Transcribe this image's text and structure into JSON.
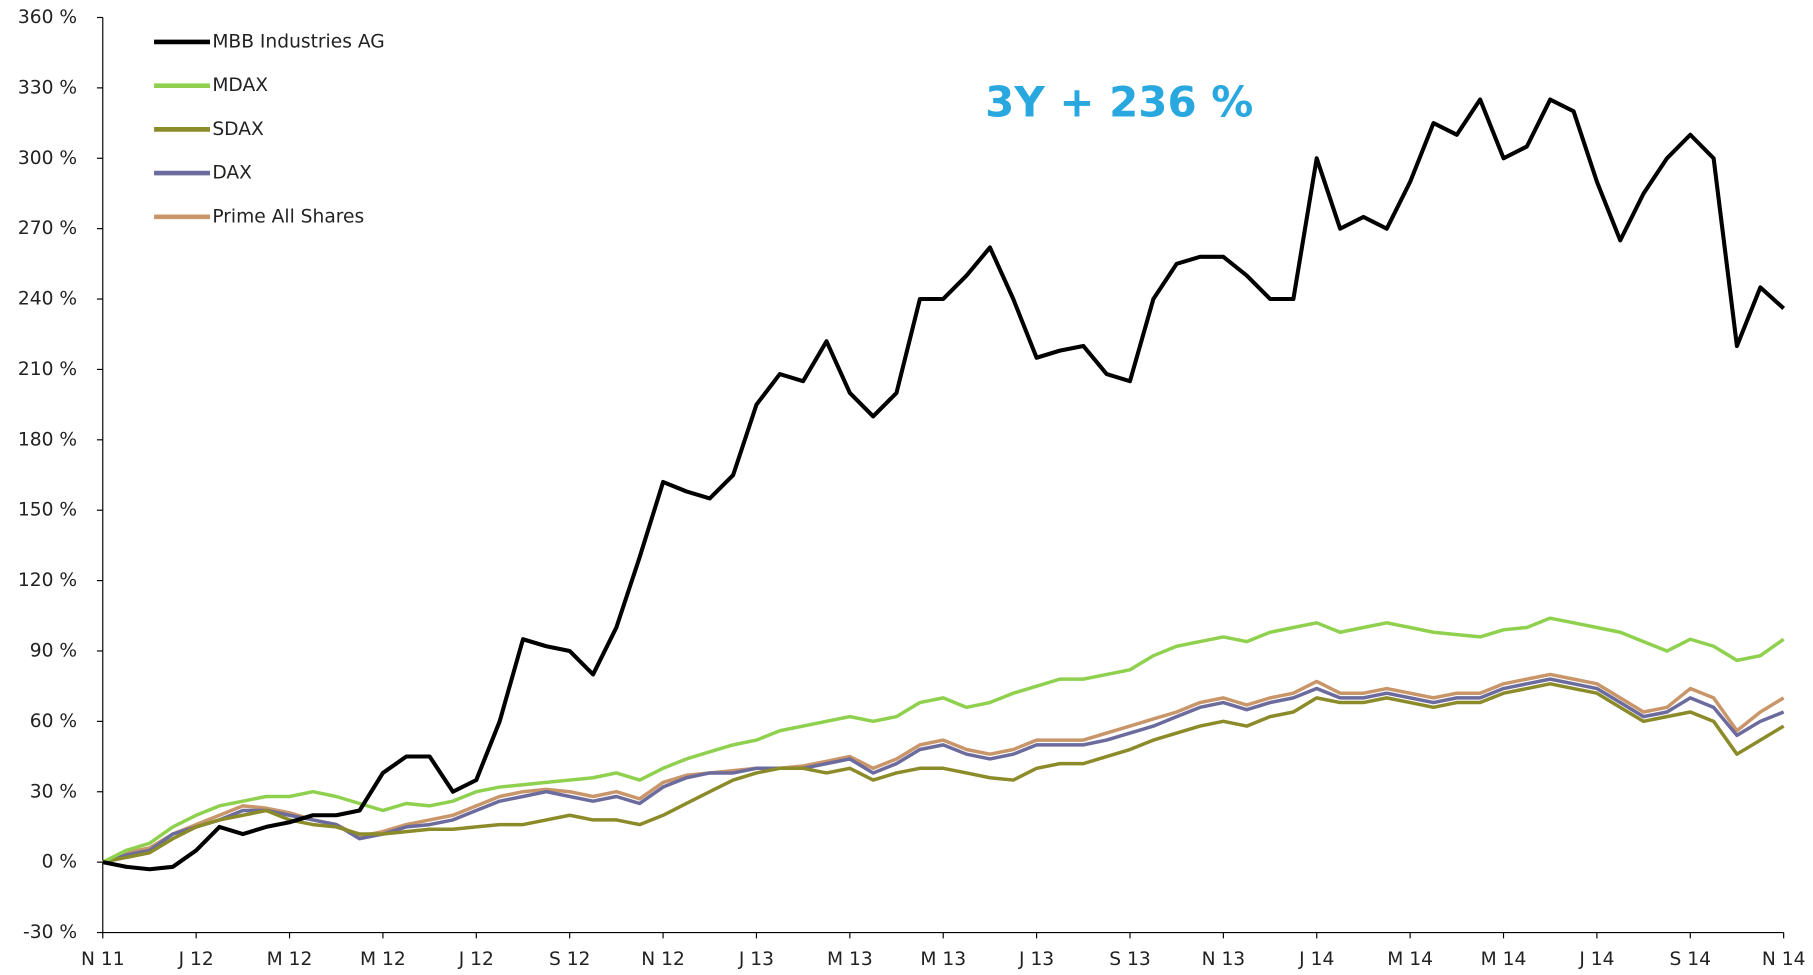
{
  "chart_data": {
    "type": "line",
    "annotation": "3Y + 236 %",
    "categories": [
      "N 11",
      null,
      null,
      null,
      "J 12",
      null,
      null,
      null,
      "M 12",
      null,
      null,
      null,
      "M 12",
      null,
      null,
      null,
      "J 12",
      null,
      null,
      null,
      "S 12",
      null,
      null,
      null,
      "N 12",
      null,
      null,
      null,
      "J 13",
      null,
      null,
      null,
      "M 13",
      null,
      null,
      null,
      "M 13",
      null,
      null,
      null,
      "J 13",
      null,
      null,
      null,
      "S 13",
      null,
      null,
      null,
      "N 13",
      null,
      null,
      null,
      "J 14",
      null,
      null,
      null,
      "M 14",
      null,
      null,
      null,
      "M 14",
      null,
      null,
      null,
      "J 14",
      null,
      null,
      null,
      "S 14",
      null,
      null,
      null,
      "N 14"
    ],
    "series": [
      {
        "name": "MBB Industries AG",
        "color": "#000000",
        "values": [
          0,
          -2,
          -3,
          -2,
          5,
          15,
          12,
          15,
          17,
          20,
          20,
          22,
          38,
          45,
          45,
          30,
          35,
          60,
          95,
          92,
          90,
          80,
          100,
          130,
          162,
          158,
          155,
          165,
          195,
          208,
          205,
          222,
          200,
          190,
          200,
          240,
          240,
          250,
          262,
          240,
          215,
          218,
          220,
          208,
          205,
          240,
          255,
          258,
          258,
          250,
          240,
          240,
          300,
          270,
          275,
          270,
          290,
          315,
          310,
          325,
          300,
          305,
          325,
          320,
          290,
          265,
          285,
          300,
          310,
          300,
          220,
          245,
          236
        ]
      },
      {
        "name": "MDAX",
        "color": "#8fd14f",
        "values": [
          0,
          5,
          8,
          15,
          20,
          24,
          26,
          28,
          28,
          30,
          28,
          25,
          22,
          25,
          24,
          26,
          30,
          32,
          33,
          34,
          35,
          36,
          38,
          35,
          40,
          44,
          47,
          50,
          52,
          56,
          58,
          60,
          62,
          60,
          62,
          68,
          70,
          66,
          68,
          72,
          75,
          78,
          78,
          80,
          82,
          88,
          92,
          94,
          96,
          94,
          98,
          100,
          102,
          98,
          100,
          102,
          100,
          98,
          97,
          96,
          99,
          100,
          104,
          102,
          100,
          98,
          94,
          90,
          95,
          92,
          86,
          88,
          95
        ]
      },
      {
        "name": "SDAX",
        "color": "#8b8b2a",
        "values": [
          0,
          2,
          4,
          10,
          15,
          18,
          20,
          22,
          18,
          16,
          15,
          12,
          12,
          13,
          14,
          14,
          15,
          16,
          16,
          18,
          20,
          18,
          18,
          16,
          20,
          25,
          30,
          35,
          38,
          40,
          40,
          38,
          40,
          35,
          38,
          40,
          40,
          38,
          36,
          35,
          40,
          42,
          42,
          45,
          48,
          52,
          55,
          58,
          60,
          58,
          62,
          64,
          70,
          68,
          68,
          70,
          68,
          66,
          68,
          68,
          72,
          74,
          76,
          74,
          72,
          66,
          60,
          62,
          64,
          60,
          46,
          52,
          58
        ]
      },
      {
        "name": "DAX",
        "color": "#6b6b9e",
        "values": [
          0,
          3,
          5,
          12,
          15,
          18,
          22,
          22,
          20,
          18,
          16,
          10,
          12,
          15,
          16,
          18,
          22,
          26,
          28,
          30,
          28,
          26,
          28,
          25,
          32,
          36,
          38,
          38,
          40,
          40,
          40,
          42,
          44,
          38,
          42,
          48,
          50,
          46,
          44,
          46,
          50,
          50,
          50,
          52,
          55,
          58,
          62,
          66,
          68,
          65,
          68,
          70,
          74,
          70,
          70,
          72,
          70,
          68,
          70,
          70,
          74,
          76,
          78,
          76,
          74,
          68,
          62,
          64,
          70,
          66,
          54,
          60,
          64
        ]
      },
      {
        "name": "Prime All Shares",
        "color": "#c9966a",
        "values": [
          0,
          4,
          6,
          12,
          16,
          20,
          24,
          23,
          21,
          18,
          16,
          11,
          13,
          16,
          18,
          20,
          24,
          28,
          30,
          31,
          30,
          28,
          30,
          27,
          34,
          37,
          38,
          39,
          40,
          40,
          41,
          43,
          45,
          40,
          44,
          50,
          52,
          48,
          46,
          48,
          52,
          52,
          52,
          55,
          58,
          61,
          64,
          68,
          70,
          67,
          70,
          72,
          77,
          72,
          72,
          74,
          72,
          70,
          72,
          72,
          76,
          78,
          80,
          78,
          76,
          70,
          64,
          66,
          74,
          70,
          56,
          64,
          70
        ]
      }
    ],
    "ylim": [
      -30,
      360
    ],
    "yticks": [
      {
        "value": -30,
        "label": "-30 %"
      },
      {
        "value": 0,
        "label": "0 %"
      },
      {
        "value": 30,
        "label": "30 %"
      },
      {
        "value": 60,
        "label": "60 %"
      },
      {
        "value": 90,
        "label": "90 %"
      },
      {
        "value": 120,
        "label": "120 %"
      },
      {
        "value": 150,
        "label": "150 %"
      },
      {
        "value": 180,
        "label": "180 %"
      },
      {
        "value": 210,
        "label": "210 %"
      },
      {
        "value": 240,
        "label": "240 %"
      },
      {
        "value": 270,
        "label": "270 %"
      },
      {
        "value": 300,
        "label": "300 %"
      },
      {
        "value": 330,
        "label": "330 %"
      },
      {
        "value": 360,
        "label": "360 %"
      }
    ],
    "annotation_color": "#29a8e0",
    "legend": "upper left"
  }
}
